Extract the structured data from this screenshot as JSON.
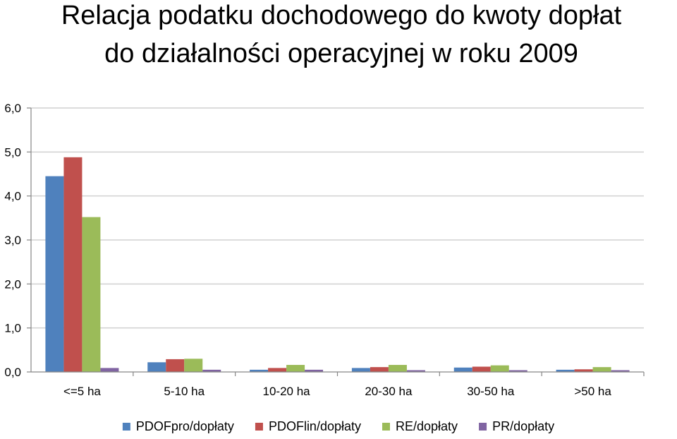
{
  "chart_data": {
    "type": "bar",
    "title_lines": [
      "Relacja podatku dochodowego do kwoty dopłat",
      "do działalności operacyjnej w roku 2009"
    ],
    "xlabel": "",
    "ylabel": "",
    "categories": [
      "<=5 ha",
      "5-10 ha",
      "10-20 ha",
      "20-30 ha",
      "30-50 ha",
      ">50 ha"
    ],
    "ylim": [
      0,
      6
    ],
    "yticks": [
      "0,0",
      "1,0",
      "2,0",
      "3,0",
      "4,0",
      "5,0",
      "6,0"
    ],
    "grid": true,
    "legend_position": "bottom",
    "series": [
      {
        "name": "PDOFpro/dopłaty",
        "color": "#4F81BD",
        "values": [
          4.45,
          0.22,
          0.05,
          0.09,
          0.1,
          0.05
        ]
      },
      {
        "name": "PDOFlin/dopłaty",
        "color": "#C0504D",
        "values": [
          4.88,
          0.29,
          0.09,
          0.11,
          0.12,
          0.06
        ]
      },
      {
        "name": "RE/dopłaty",
        "color": "#9BBB59",
        "values": [
          3.52,
          0.3,
          0.16,
          0.16,
          0.15,
          0.11
        ]
      },
      {
        "name": "PR/dopłaty",
        "color": "#8064A2",
        "values": [
          0.09,
          0.05,
          0.05,
          0.04,
          0.04,
          0.04
        ]
      }
    ]
  }
}
